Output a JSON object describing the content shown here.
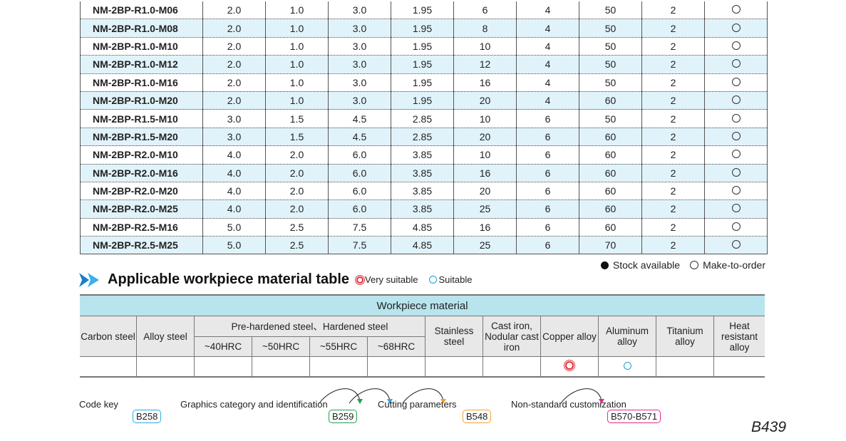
{
  "spec_rows": [
    [
      "NM-2BP-R1.0-M06",
      "2.0",
      "1.0",
      "3.0",
      "1.95",
      "6",
      "4",
      "50",
      "2"
    ],
    [
      "NM-2BP-R1.0-M08",
      "2.0",
      "1.0",
      "3.0",
      "1.95",
      "8",
      "4",
      "50",
      "2"
    ],
    [
      "NM-2BP-R1.0-M10",
      "2.0",
      "1.0",
      "3.0",
      "1.95",
      "10",
      "4",
      "50",
      "2"
    ],
    [
      "NM-2BP-R1.0-M12",
      "2.0",
      "1.0",
      "3.0",
      "1.95",
      "12",
      "4",
      "50",
      "2"
    ],
    [
      "NM-2BP-R1.0-M16",
      "2.0",
      "1.0",
      "3.0",
      "1.95",
      "16",
      "4",
      "50",
      "2"
    ],
    [
      "NM-2BP-R1.0-M20",
      "2.0",
      "1.0",
      "3.0",
      "1.95",
      "20",
      "4",
      "60",
      "2"
    ],
    [
      "NM-2BP-R1.5-M10",
      "3.0",
      "1.5",
      "4.5",
      "2.85",
      "10",
      "6",
      "50",
      "2"
    ],
    [
      "NM-2BP-R1.5-M20",
      "3.0",
      "1.5",
      "4.5",
      "2.85",
      "20",
      "6",
      "60",
      "2"
    ],
    [
      "NM-2BP-R2.0-M10",
      "4.0",
      "2.0",
      "6.0",
      "3.85",
      "10",
      "6",
      "60",
      "2"
    ],
    [
      "NM-2BP-R2.0-M16",
      "4.0",
      "2.0",
      "6.0",
      "3.85",
      "16",
      "6",
      "60",
      "2"
    ],
    [
      "NM-2BP-R2.0-M20",
      "4.0",
      "2.0",
      "6.0",
      "3.85",
      "20",
      "6",
      "60",
      "2"
    ],
    [
      "NM-2BP-R2.0-M25",
      "4.0",
      "2.0",
      "6.0",
      "3.85",
      "25",
      "6",
      "60",
      "2"
    ],
    [
      "NM-2BP-R2.5-M16",
      "5.0",
      "2.5",
      "7.5",
      "4.85",
      "16",
      "6",
      "60",
      "2"
    ],
    [
      "NM-2BP-R2.5-M25",
      "5.0",
      "2.5",
      "7.5",
      "4.85",
      "25",
      "6",
      "70",
      "2"
    ]
  ],
  "stock_status": "make-to-order",
  "legend": {
    "stock": "Stock available",
    "make": "Make-to-order"
  },
  "material": {
    "title": "Applicable workpiece material table",
    "very_suitable": "Very suitable",
    "suitable": "Suitable",
    "header": "Workpiece material",
    "carbon": "Carbon steel",
    "alloy": "Alloy steel",
    "hardened": "Pre-hardened steel、Hardened steel",
    "hrc": [
      "~40HRC",
      "~50HRC",
      "~55HRC",
      "~68HRC"
    ],
    "stainless": "Stainless steel",
    "cast": "Cast iron, Nodular cast iron",
    "copper": "Copper alloy",
    "aluminum": "Aluminum alloy",
    "titanium": "Titanium alloy",
    "heat": "Heat resistant alloy",
    "ratings": {
      "copper": "very-suitable",
      "aluminum": "suitable"
    }
  },
  "refs": [
    {
      "label": "Code key",
      "page": "B258",
      "color": "#29abe2"
    },
    {
      "label": "Graphics category and identification",
      "page": "B259",
      "color": "#1ea050"
    },
    {
      "label": "Cutting parameters",
      "page": "B548",
      "color": "#f5a030"
    },
    {
      "label": "Non-standard customization",
      "page": "B570-B571",
      "color": "#e8288a"
    }
  ],
  "page_number": "B439"
}
